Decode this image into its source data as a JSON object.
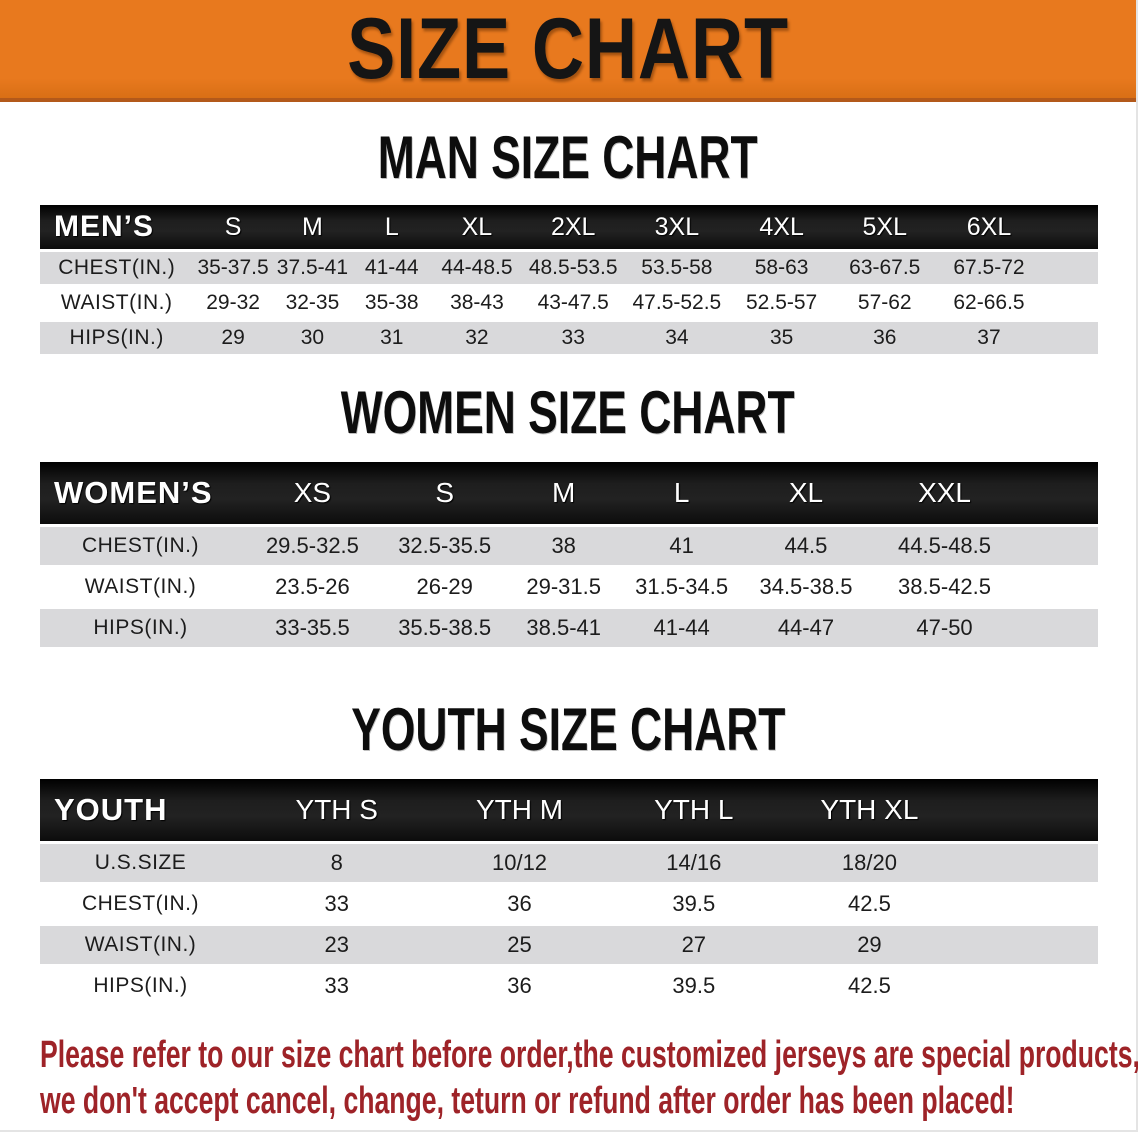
{
  "banner": {
    "title": "SIZE CHART"
  },
  "sections": [
    {
      "key": "men",
      "heading": "MAN SIZE CHART",
      "header_label": "MEN’S",
      "columns": [
        "S",
        "M",
        "L",
        "XL",
        "2XL",
        "3XL",
        "4XL",
        "5XL",
        "6XL"
      ],
      "rows": [
        {
          "label": "CHEST(IN.)",
          "values": [
            "35-37.5",
            "37.5-41",
            "41-44",
            "44-48.5",
            "48.5-53.5",
            "53.5-58",
            "58-63",
            "63-67.5",
            "67.5-72"
          ]
        },
        {
          "label": "WAIST(IN.)",
          "values": [
            "29-32",
            "32-35",
            "35-38",
            "38-43",
            "43-47.5",
            "47.5-52.5",
            "52.5-57",
            "57-62",
            "62-66.5"
          ]
        },
        {
          "label": "HIPS(IN.)",
          "values": [
            "29",
            "30",
            "31",
            "32",
            "33",
            "34",
            "35",
            "36",
            "37"
          ]
        }
      ]
    },
    {
      "key": "women",
      "heading": "WOMEN SIZE CHART",
      "header_label": "WOMEN’S",
      "columns": [
        "XS",
        "S",
        "M",
        "L",
        "XL",
        "XXL"
      ],
      "rows": [
        {
          "label": "CHEST(IN.)",
          "values": [
            "29.5-32.5",
            "32.5-35.5",
            "38",
            "41",
            "44.5",
            "44.5-48.5"
          ]
        },
        {
          "label": "WAIST(IN.)",
          "values": [
            "23.5-26",
            "26-29",
            "29-31.5",
            "31.5-34.5",
            "34.5-38.5",
            "38.5-42.5"
          ]
        },
        {
          "label": "HIPS(IN.)",
          "values": [
            "33-35.5",
            "35.5-38.5",
            "38.5-41",
            "41-44",
            "44-47",
            "47-50"
          ]
        }
      ]
    },
    {
      "key": "youth",
      "heading": "YOUTH SIZE CHART",
      "header_label": "YOUTH",
      "columns": [
        "YTH S",
        "YTH M",
        "YTH L",
        "YTH XL"
      ],
      "rows": [
        {
          "label": "U.S.SIZE",
          "values": [
            "8",
            "10/12",
            "14/16",
            "18/20"
          ]
        },
        {
          "label": "CHEST(IN.)",
          "values": [
            "33",
            "36",
            "39.5",
            "42.5"
          ]
        },
        {
          "label": "WAIST(IN.)",
          "values": [
            "23",
            "25",
            "27",
            "29"
          ]
        },
        {
          "label": "HIPS(IN.)",
          "values": [
            "33",
            "36",
            "39.5",
            "42.5"
          ]
        }
      ]
    }
  ],
  "footer": {
    "lines": [
      "Please refer to our size chart before order,the customized jerseys are special products,",
      "we don't accept cancel, change, teturn or refund after order has been placed!"
    ]
  },
  "colors": {
    "banner_bg": "#e8791e",
    "banner_border": "#b3591a",
    "header_bg": "#141414",
    "row_shade": "#d9d9db",
    "note_red": "#9e2328"
  }
}
